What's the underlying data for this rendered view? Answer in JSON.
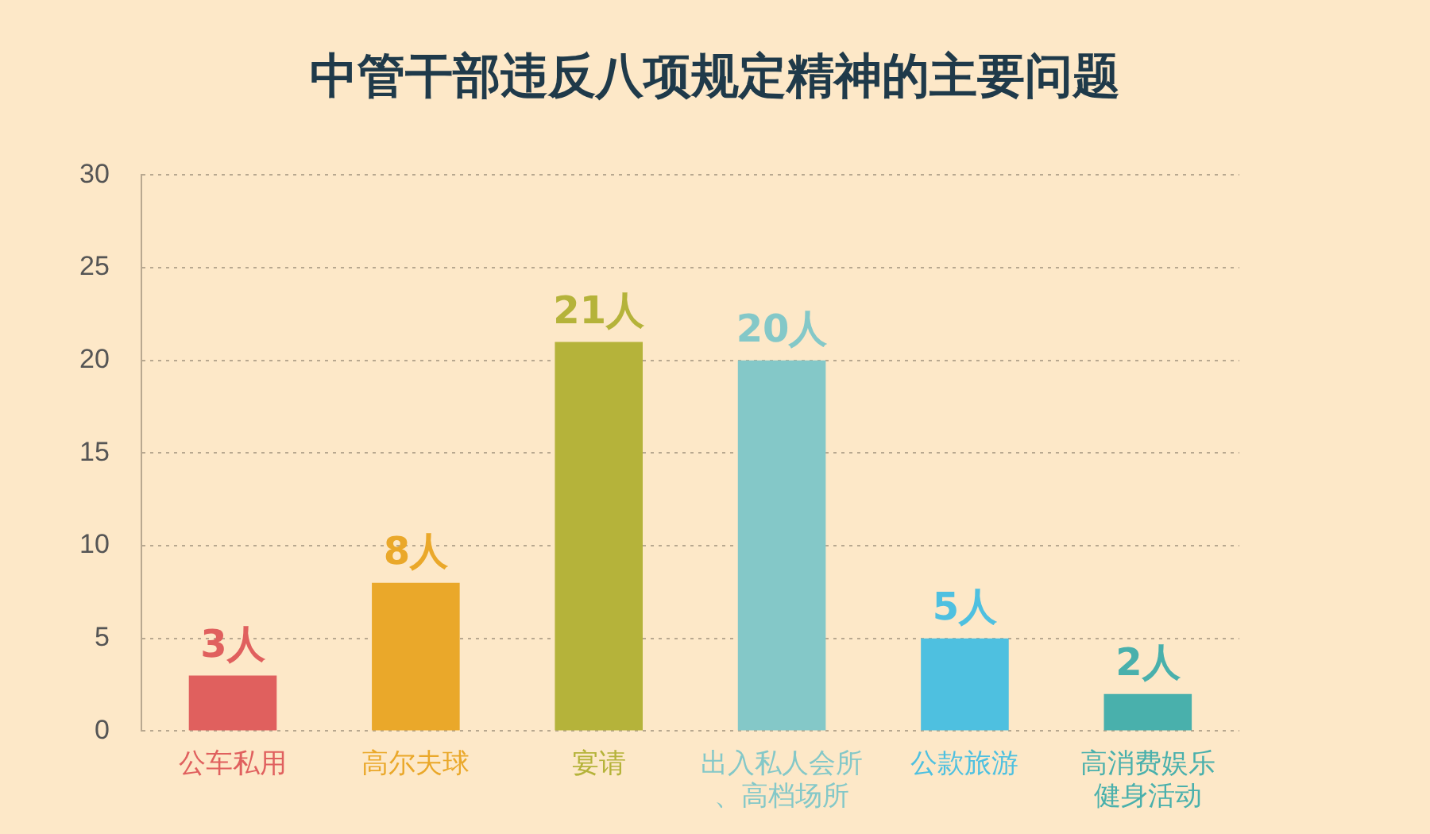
{
  "chart_data": {
    "type": "bar",
    "title": "中管干部违反八项规定精神的主要问题",
    "categories": [
      "公车私用",
      "高尔夫球",
      "宴请",
      "出入私人会所、高档场所",
      "公款旅游",
      "高消费娱乐健身活动"
    ],
    "values": [
      3,
      8,
      21,
      20,
      5,
      2
    ],
    "value_labels": [
      "3人",
      "8人",
      "21人",
      "20人",
      "5人",
      "2人"
    ],
    "colors": [
      "#e0605e",
      "#eaa82a",
      "#b5b33a",
      "#84c8c8",
      "#4ec0e0",
      "#49b0ac"
    ],
    "ylim": [
      0,
      30
    ],
    "yticks": [
      0,
      5,
      10,
      15,
      20,
      25,
      30
    ],
    "grid": "y",
    "legend": false
  }
}
